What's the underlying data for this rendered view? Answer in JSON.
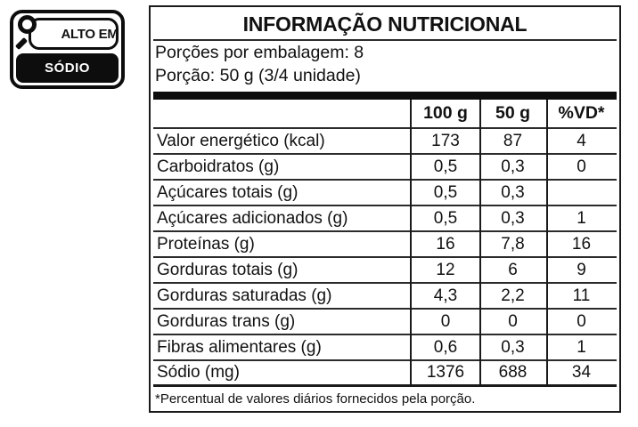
{
  "badge": {
    "header": "ALTO EM",
    "nutrient": "SÓDIO"
  },
  "table": {
    "title": "INFORMAÇÃO NUTRICIONAL",
    "servings_per_package": "Porções por embalagem: 8",
    "serving_size": "Porção: 50 g (3/4 unidade)",
    "columns": [
      "",
      "100 g",
      "50 g",
      "%VD*"
    ],
    "rows": [
      {
        "label": "Valor energético (kcal)",
        "indent": 0,
        "v100": "173",
        "v50": "87",
        "vd": "4"
      },
      {
        "label": "Carboidratos (g)",
        "indent": 0,
        "v100": "0,5",
        "v50": "0,3",
        "vd": "0"
      },
      {
        "label": "Açúcares totais (g)",
        "indent": 1,
        "v100": "0,5",
        "v50": "0,3",
        "vd": ""
      },
      {
        "label": "Açúcares adicionados (g)",
        "indent": 2,
        "v100": "0,5",
        "v50": "0,3",
        "vd": "1"
      },
      {
        "label": "Proteínas (g)",
        "indent": 0,
        "v100": "16",
        "v50": "7,8",
        "vd": "16"
      },
      {
        "label": "Gorduras totais (g)",
        "indent": 0,
        "v100": "12",
        "v50": "6",
        "vd": "9"
      },
      {
        "label": "Gorduras saturadas (g)",
        "indent": 1,
        "v100": "4,3",
        "v50": "2,2",
        "vd": "11"
      },
      {
        "label": "Gorduras trans (g)",
        "indent": 1,
        "v100": "0",
        "v50": "0",
        "vd": "0"
      },
      {
        "label": "Fibras alimentares (g)",
        "indent": 0,
        "v100": "0,6",
        "v50": "0,3",
        "vd": "1"
      },
      {
        "label": "Sódio (mg)",
        "indent": 0,
        "v100": "1376",
        "v50": "688",
        "vd": "34"
      }
    ],
    "footnote": "*Percentual de valores diários fornecidos pela porção."
  },
  "colors": {
    "ink": "#111111",
    "paper": "#ffffff",
    "badge_fill": "#0d0d0d"
  }
}
